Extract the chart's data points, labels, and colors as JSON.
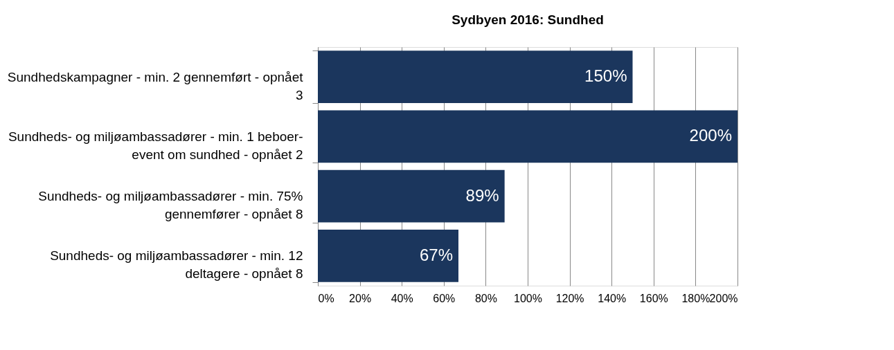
{
  "chart_data": {
    "type": "bar",
    "orientation": "horizontal",
    "title": "Sydbyen 2016: Sundhed",
    "categories": [
      "Sundhedskampagner - min. 2 gennemført - opnået 3",
      "Sundheds- og miljøambassadører - min. 1 beboer-event om sundhed - opnået 2",
      "Sundheds- og miljøambassadører - min. 75% gennemfører - opnået 8",
      "Sundheds- og miljøambassadører - min. 12 deltagere - opnået 8"
    ],
    "values": [
      150,
      200,
      89,
      67
    ],
    "value_labels": [
      "150%",
      "200%",
      "89%",
      "67%"
    ],
    "color": "#1b365d",
    "xlim": [
      0,
      200
    ],
    "xticks": [
      {
        "value": 0,
        "label": "0%"
      },
      {
        "value": 20,
        "label": "20%"
      },
      {
        "value": 40,
        "label": "40%"
      },
      {
        "value": 60,
        "label": "60%"
      },
      {
        "value": 80,
        "label": "80%"
      },
      {
        "value": 100,
        "label": "100%"
      },
      {
        "value": 120,
        "label": "120%"
      },
      {
        "value": 140,
        "label": "140%"
      },
      {
        "value": 160,
        "label": "160%"
      },
      {
        "value": 180,
        "label": "180%"
      },
      {
        "value": 200,
        "label": "200%"
      }
    ],
    "grid": "x"
  }
}
